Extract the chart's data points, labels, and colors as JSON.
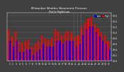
{
  "title": "Milwaukee Weather Barometric Pressure",
  "subtitle": "Daily High/Low",
  "bar_width": 0.45,
  "high_color": "#ff0000",
  "low_color": "#0000ff",
  "legend_high": "High",
  "legend_low": "Low",
  "background_color": "#404040",
  "plot_bg_color": "#404040",
  "text_color": "#ffffff",
  "ylim": [
    29.0,
    30.7
  ],
  "yticks": [
    29.0,
    29.2,
    29.4,
    29.6,
    29.8,
    30.0,
    30.2,
    30.4,
    30.6
  ],
  "x_labels": [
    "1",
    "2",
    "3",
    "4",
    "5",
    "6",
    "7",
    "8",
    "9",
    "10",
    "11",
    "12",
    "13",
    "14",
    "15",
    "16",
    "17",
    "18",
    "19",
    "20",
    "21",
    "22",
    "23",
    "24",
    "25",
    "26",
    "27",
    "28",
    "29",
    "30",
    "31"
  ],
  "highs": [
    30.1,
    29.85,
    30.05,
    29.7,
    29.65,
    29.7,
    29.75,
    29.5,
    29.6,
    29.7,
    29.9,
    29.8,
    29.75,
    29.8,
    30.1,
    30.05,
    29.9,
    30.0,
    30.05,
    30.0,
    29.85,
    29.9,
    30.2,
    30.35,
    30.5,
    30.55,
    30.3,
    30.15,
    30.0,
    29.9,
    29.7
  ],
  "lows": [
    29.7,
    29.5,
    29.7,
    29.3,
    29.3,
    29.4,
    29.4,
    29.2,
    29.3,
    29.4,
    29.6,
    29.5,
    29.5,
    29.5,
    29.7,
    29.7,
    29.6,
    29.7,
    29.7,
    29.7,
    29.5,
    29.6,
    29.9,
    30.1,
    30.2,
    30.2,
    30.0,
    29.85,
    29.7,
    29.6,
    29.4
  ],
  "vline_positions": [
    19.5,
    20.5,
    21.5
  ],
  "vline_color": "#888888",
  "grid_color": "#606060"
}
